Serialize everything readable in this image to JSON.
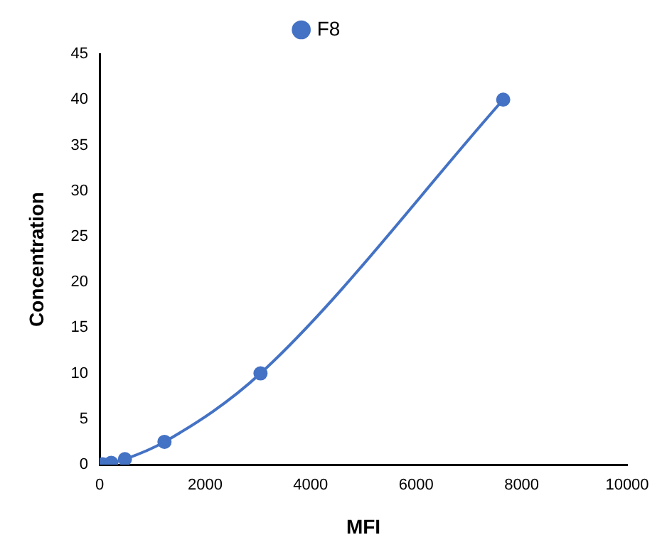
{
  "chart_data": {
    "type": "line",
    "xlabel": "MFI",
    "ylabel": "Concentration",
    "series": [
      {
        "name": "F8",
        "color": "#4472c4",
        "x": [
          60,
          220,
          480,
          1230,
          3050,
          7650
        ],
        "values": [
          0.04,
          0.2,
          0.6,
          2.5,
          10,
          40
        ]
      }
    ],
    "xlim": [
      0,
      10000
    ],
    "xticks": [
      0,
      2000,
      4000,
      6000,
      8000,
      10000
    ],
    "ylim": [
      0,
      45
    ],
    "yticks": [
      0,
      5,
      10,
      15,
      20,
      25,
      30,
      35,
      40,
      45
    ],
    "grid": false,
    "legend": "top",
    "marker": "circle",
    "line_style": "solid"
  }
}
